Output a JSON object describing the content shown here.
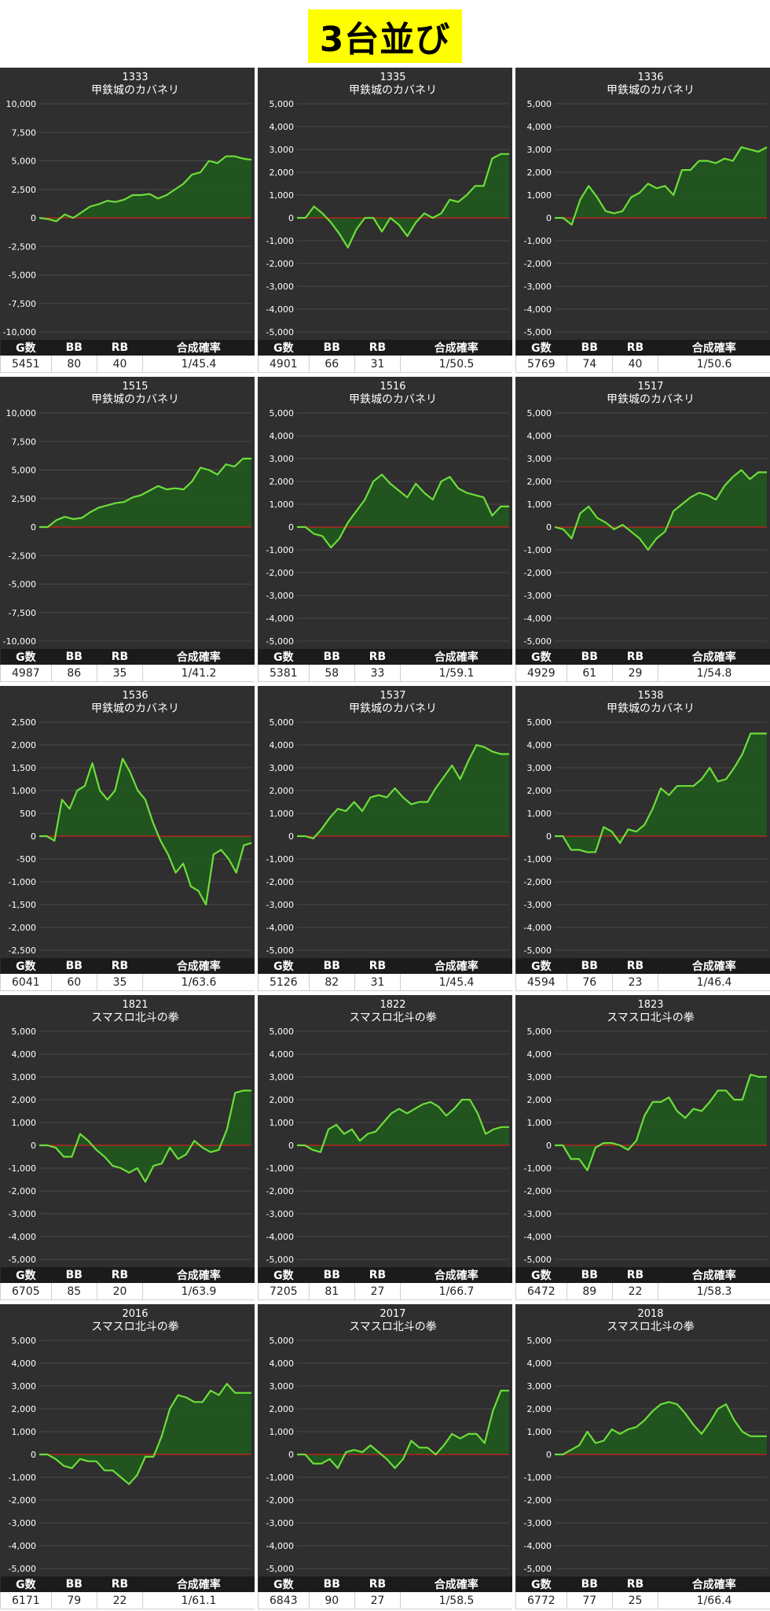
{
  "page": {
    "title": "3台並び"
  },
  "headers": [
    "G数",
    "BB",
    "RB",
    "合成確率"
  ],
  "colors": {
    "panel_bg": "#2f2f2f",
    "line": "#6dde3a",
    "fill": "#1e5a1c",
    "zero_line": "#d11d1d",
    "grid": "#4a4a4a",
    "text": "#ffffff"
  },
  "chart_data": [
    {
      "type": "line",
      "id": "1333",
      "name": "甲鉄城のカバネリ",
      "ylim": [
        -10000,
        10000
      ],
      "yticks": [
        10000,
        7500,
        5000,
        2500,
        0,
        -2500,
        -5000,
        -7500,
        -10000
      ],
      "ytick_labels": [
        "10,000",
        "7,500",
        "5,000",
        "2,500",
        "0",
        "-2,500",
        "-5,000",
        "-7,500",
        "-10,000"
      ],
      "values": [
        0,
        -100,
        -300,
        300,
        0,
        500,
        1000,
        1200,
        1500,
        1400,
        1600,
        2000,
        2000,
        2100,
        1700,
        2000,
        2500,
        3000,
        3800,
        4000,
        5000,
        4800,
        5400,
        5400,
        5200,
        5100
      ],
      "stats": {
        "g": "5451",
        "bb": "80",
        "rb": "40",
        "prob": "1/45.4"
      }
    },
    {
      "type": "line",
      "id": "1335",
      "name": "甲鉄城のカバネリ",
      "ylim": [
        -5000,
        5000
      ],
      "yticks": [
        5000,
        4000,
        3000,
        2000,
        1000,
        0,
        -1000,
        -2000,
        -3000,
        -4000,
        -5000
      ],
      "ytick_labels": [
        "5,000",
        "4,000",
        "3,000",
        "2,000",
        "1,000",
        "0",
        "-1,000",
        "-2,000",
        "-3,000",
        "-4,000",
        "-5,000"
      ],
      "values": [
        0,
        0,
        500,
        200,
        -200,
        -700,
        -1300,
        -500,
        0,
        0,
        -600,
        0,
        -300,
        -800,
        -200,
        200,
        0,
        200,
        800,
        700,
        1000,
        1400,
        1400,
        2600,
        2800,
        2800
      ],
      "stats": {
        "g": "4901",
        "bb": "66",
        "rb": "31",
        "prob": "1/50.5"
      }
    },
    {
      "type": "line",
      "id": "1336",
      "name": "甲鉄城のカバネリ",
      "ylim": [
        -5000,
        5000
      ],
      "yticks": [
        5000,
        4000,
        3000,
        2000,
        1000,
        0,
        -1000,
        -2000,
        -3000,
        -4000,
        -5000
      ],
      "ytick_labels": [
        "5,000",
        "4,000",
        "3,000",
        "2,000",
        "1,000",
        "0",
        "-1,000",
        "-2,000",
        "-3,000",
        "-4,000",
        "-5,000"
      ],
      "values": [
        0,
        0,
        -300,
        800,
        1400,
        900,
        300,
        200,
        300,
        900,
        1100,
        1500,
        1300,
        1400,
        1000,
        2100,
        2100,
        2500,
        2500,
        2400,
        2600,
        2500,
        3100,
        3000,
        2900,
        3100
      ],
      "stats": {
        "g": "5769",
        "bb": "74",
        "rb": "40",
        "prob": "1/50.6"
      }
    },
    {
      "type": "line",
      "id": "1515",
      "name": "甲鉄城のカバネリ",
      "ylim": [
        -10000,
        10000
      ],
      "yticks": [
        10000,
        7500,
        5000,
        2500,
        0,
        -2500,
        -5000,
        -7500,
        -10000
      ],
      "ytick_labels": [
        "10,000",
        "7,500",
        "5,000",
        "2,500",
        "0",
        "-2,500",
        "-5,000",
        "-7,500",
        "-10,000"
      ],
      "values": [
        0,
        0,
        600,
        900,
        700,
        800,
        1300,
        1700,
        1900,
        2100,
        2200,
        2600,
        2800,
        3200,
        3600,
        3300,
        3400,
        3300,
        4000,
        5200,
        5000,
        4600,
        5500,
        5300,
        6000,
        6000
      ],
      "stats": {
        "g": "4987",
        "bb": "86",
        "rb": "35",
        "prob": "1/41.2"
      }
    },
    {
      "type": "line",
      "id": "1516",
      "name": "甲鉄城のカバネリ",
      "ylim": [
        -5000,
        5000
      ],
      "yticks": [
        5000,
        4000,
        3000,
        2000,
        1000,
        0,
        -1000,
        -2000,
        -3000,
        -4000,
        -5000
      ],
      "ytick_labels": [
        "5,000",
        "4,000",
        "3,000",
        "2,000",
        "1,000",
        "0",
        "-1,000",
        "-2,000",
        "-3,000",
        "-4,000",
        "-5,000"
      ],
      "values": [
        0,
        0,
        -300,
        -400,
        -900,
        -500,
        200,
        700,
        1200,
        2000,
        2300,
        1900,
        1600,
        1300,
        1900,
        1500,
        1200,
        2000,
        2200,
        1700,
        1500,
        1400,
        1300,
        500,
        900,
        900
      ],
      "stats": {
        "g": "5381",
        "bb": "58",
        "rb": "33",
        "prob": "1/59.1"
      }
    },
    {
      "type": "line",
      "id": "1517",
      "name": "甲鉄城のカバネリ",
      "ylim": [
        -5000,
        5000
      ],
      "yticks": [
        5000,
        4000,
        3000,
        2000,
        1000,
        0,
        -1000,
        -2000,
        -3000,
        -4000,
        -5000
      ],
      "ytick_labels": [
        "5,000",
        "4,000",
        "3,000",
        "2,000",
        "1,000",
        "0",
        "-1,000",
        "-2,000",
        "-3,000",
        "-4,000",
        "-5,000"
      ],
      "values": [
        0,
        -100,
        -500,
        600,
        900,
        400,
        200,
        -100,
        100,
        -200,
        -500,
        -1000,
        -500,
        -200,
        700,
        1000,
        1300,
        1500,
        1400,
        1200,
        1800,
        2200,
        2500,
        2100,
        2400,
        2400
      ],
      "stats": {
        "g": "4929",
        "bb": "61",
        "rb": "29",
        "prob": "1/54.8"
      }
    },
    {
      "type": "line",
      "id": "1536",
      "name": "甲鉄城のカバネリ",
      "ylim": [
        -2500,
        2500
      ],
      "yticks": [
        2500,
        2000,
        1500,
        1000,
        500,
        0,
        -500,
        -1000,
        -1500,
        -2000,
        -2500
      ],
      "ytick_labels": [
        "2,500",
        "2,000",
        "1,500",
        "1,000",
        "500",
        "0",
        "-500",
        "-1,000",
        "-1,500",
        "-2,000",
        "-2,500"
      ],
      "values": [
        0,
        0,
        -100,
        800,
        600,
        1000,
        1100,
        1600,
        1000,
        800,
        1000,
        1700,
        1400,
        1000,
        800,
        300,
        -100,
        -400,
        -800,
        -600,
        -1100,
        -1200,
        -1500,
        -400,
        -300,
        -500,
        -800,
        -200,
        -150
      ],
      "stats": {
        "g": "6041",
        "bb": "60",
        "rb": "35",
        "prob": "1/63.6"
      }
    },
    {
      "type": "line",
      "id": "1537",
      "name": "甲鉄城のカバネリ",
      "ylim": [
        -5000,
        5000
      ],
      "yticks": [
        5000,
        4000,
        3000,
        2000,
        1000,
        0,
        -1000,
        -2000,
        -3000,
        -4000,
        -5000
      ],
      "ytick_labels": [
        "5,000",
        "4,000",
        "3,000",
        "2,000",
        "1,000",
        "0",
        "-1,000",
        "-2,000",
        "-3,000",
        "-4,000",
        "-5,000"
      ],
      "values": [
        0,
        0,
        -100,
        300,
        800,
        1200,
        1100,
        1500,
        1100,
        1700,
        1800,
        1700,
        2100,
        1700,
        1400,
        1500,
        1500,
        2100,
        2600,
        3100,
        2500,
        3300,
        4000,
        3900,
        3700,
        3600,
        3600
      ],
      "stats": {
        "g": "5126",
        "bb": "82",
        "rb": "31",
        "prob": "1/45.4"
      }
    },
    {
      "type": "line",
      "id": "1538",
      "name": "甲鉄城のカバネリ",
      "ylim": [
        -5000,
        5000
      ],
      "yticks": [
        5000,
        4000,
        3000,
        2000,
        1000,
        0,
        -1000,
        -2000,
        -3000,
        -4000,
        -5000
      ],
      "ytick_labels": [
        "5,000",
        "4,000",
        "3,000",
        "2,000",
        "1,000",
        "0",
        "-1,000",
        "-2,000",
        "-3,000",
        "-4,000",
        "-5,000"
      ],
      "values": [
        0,
        0,
        -600,
        -600,
        -700,
        -700,
        400,
        200,
        -300,
        300,
        200,
        500,
        1200,
        2100,
        1800,
        2200,
        2200,
        2200,
        2500,
        3000,
        2400,
        2500,
        3000,
        3600,
        4500,
        4500,
        4500
      ],
      "stats": {
        "g": "4594",
        "bb": "76",
        "rb": "23",
        "prob": "1/46.4"
      }
    },
    {
      "type": "line",
      "id": "1821",
      "name": "スマスロ北斗の拳",
      "ylim": [
        -5000,
        5000
      ],
      "yticks": [
        5000,
        4000,
        3000,
        2000,
        1000,
        0,
        -1000,
        -2000,
        -3000,
        -4000,
        -5000
      ],
      "ytick_labels": [
        "5,000",
        "4,000",
        "3,000",
        "2,000",
        "1,000",
        "0",
        "-1,000",
        "-2,000",
        "-3,000",
        "-4,000",
        "-5,000"
      ],
      "values": [
        0,
        0,
        -100,
        -500,
        -500,
        500,
        200,
        -200,
        -500,
        -900,
        -1000,
        -1200,
        -1000,
        -1600,
        -900,
        -800,
        -100,
        -600,
        -400,
        200,
        -100,
        -300,
        -200,
        700,
        2300,
        2400,
        2400
      ],
      "stats": {
        "g": "6705",
        "bb": "85",
        "rb": "20",
        "prob": "1/63.9"
      }
    },
    {
      "type": "line",
      "id": "1822",
      "name": "スマスロ北斗の拳",
      "ylim": [
        -5000,
        5000
      ],
      "yticks": [
        5000,
        4000,
        3000,
        2000,
        1000,
        0,
        -1000,
        -2000,
        -3000,
        -4000,
        -5000
      ],
      "ytick_labels": [
        "5,000",
        "4,000",
        "3,000",
        "2,000",
        "1,000",
        "0",
        "-1,000",
        "-2,000",
        "-3,000",
        "-4,000",
        "-5,000"
      ],
      "values": [
        0,
        0,
        -200,
        -300,
        700,
        900,
        500,
        700,
        200,
        500,
        600,
        1000,
        1400,
        1600,
        1400,
        1600,
        1800,
        1900,
        1700,
        1300,
        1600,
        2000,
        2000,
        1400,
        500,
        700,
        800,
        800
      ],
      "stats": {
        "g": "7205",
        "bb": "81",
        "rb": "27",
        "prob": "1/66.7"
      }
    },
    {
      "type": "line",
      "id": "1823",
      "name": "スマスロ北斗の拳",
      "ylim": [
        -5000,
        5000
      ],
      "yticks": [
        5000,
        4000,
        3000,
        2000,
        1000,
        0,
        -1000,
        -2000,
        -3000,
        -4000,
        -5000
      ],
      "ytick_labels": [
        "5,000",
        "4,000",
        "3,000",
        "2,000",
        "1,000",
        "0",
        "-1,000",
        "-2,000",
        "-3,000",
        "-4,000",
        "-5,000"
      ],
      "values": [
        0,
        0,
        -600,
        -600,
        -1100,
        -100,
        100,
        100,
        0,
        -200,
        200,
        1300,
        1900,
        1900,
        2100,
        1500,
        1200,
        1600,
        1500,
        1900,
        2400,
        2400,
        2000,
        2000,
        3100,
        3000,
        3000
      ],
      "stats": {
        "g": "6472",
        "bb": "89",
        "rb": "22",
        "prob": "1/58.3"
      }
    },
    {
      "type": "line",
      "id": "2016",
      "name": "スマスロ北斗の拳",
      "ylim": [
        -5000,
        5000
      ],
      "yticks": [
        5000,
        4000,
        3000,
        2000,
        1000,
        0,
        -1000,
        -2000,
        -3000,
        -4000,
        -5000
      ],
      "ytick_labels": [
        "5,000",
        "4,000",
        "3,000",
        "2,000",
        "1,000",
        "0",
        "-1,000",
        "-2,000",
        "-3,000",
        "-4,000",
        "-5,000"
      ],
      "values": [
        0,
        0,
        -200,
        -500,
        -600,
        -200,
        -300,
        -300,
        -700,
        -700,
        -1000,
        -1300,
        -900,
        -100,
        -100,
        800,
        2000,
        2600,
        2500,
        2300,
        2300,
        2800,
        2600,
        3100,
        2700,
        2700,
        2700
      ],
      "stats": {
        "g": "6171",
        "bb": "79",
        "rb": "22",
        "prob": "1/61.1"
      }
    },
    {
      "type": "line",
      "id": "2017",
      "name": "スマスロ北斗の拳",
      "ylim": [
        -5000,
        5000
      ],
      "yticks": [
        5000,
        4000,
        3000,
        2000,
        1000,
        0,
        -1000,
        -2000,
        -3000,
        -4000,
        -5000
      ],
      "ytick_labels": [
        "5,000",
        "4,000",
        "3,000",
        "2,000",
        "1,000",
        "0",
        "-1,000",
        "-2,000",
        "-3,000",
        "-4,000",
        "-5,000"
      ],
      "values": [
        0,
        0,
        -400,
        -400,
        -200,
        -600,
        100,
        200,
        100,
        400,
        100,
        -200,
        -600,
        -200,
        600,
        300,
        300,
        0,
        400,
        900,
        700,
        900,
        900,
        500,
        1900,
        2800,
        2800
      ],
      "stats": {
        "g": "6843",
        "bb": "90",
        "rb": "27",
        "prob": "1/58.5"
      }
    },
    {
      "type": "line",
      "id": "2018",
      "name": "スマスロ北斗の拳",
      "ylim": [
        -5000,
        5000
      ],
      "yticks": [
        5000,
        4000,
        3000,
        2000,
        1000,
        0,
        -1000,
        -2000,
        -3000,
        -4000,
        -5000
      ],
      "ytick_labels": [
        "5,000",
        "4,000",
        "3,000",
        "2,000",
        "1,000",
        "0",
        "-1,000",
        "-2,000",
        "-3,000",
        "-4,000",
        "-5,000"
      ],
      "values": [
        0,
        0,
        200,
        400,
        1000,
        500,
        600,
        1100,
        900,
        1100,
        1200,
        1500,
        1900,
        2200,
        2300,
        2200,
        1800,
        1300,
        900,
        1400,
        2000,
        2200,
        1500,
        1000,
        800,
        800,
        800
      ],
      "stats": {
        "g": "6772",
        "bb": "77",
        "rb": "25",
        "prob": "1/66.4"
      }
    }
  ]
}
